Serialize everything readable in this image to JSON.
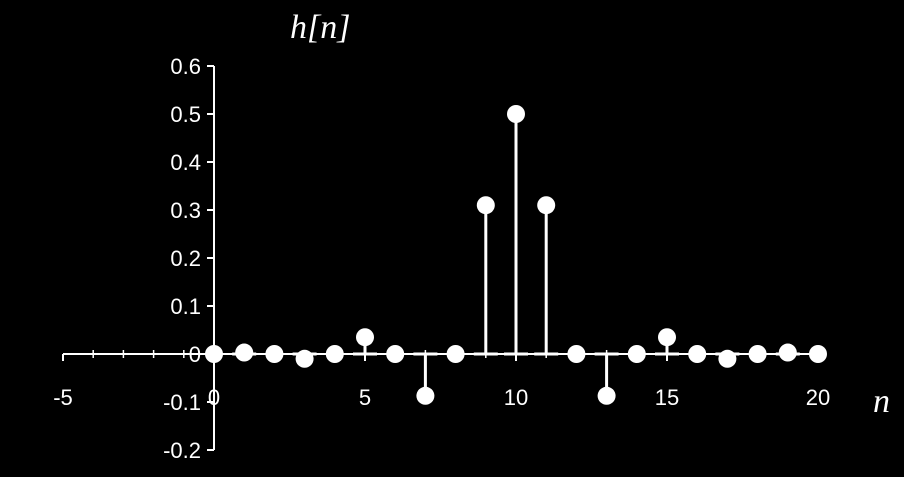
{
  "chart_data": {
    "type": "scatter",
    "style": "stem",
    "title": "",
    "ylabel": "h[n]",
    "xlabel": "n",
    "xlim": [
      -5,
      20
    ],
    "ylim": [
      -0.2,
      0.6
    ],
    "x_ticks": [
      -5,
      0,
      5,
      10,
      15,
      20
    ],
    "x_tick_labels": [
      "-5",
      "0",
      "5",
      "10",
      "15",
      "20"
    ],
    "y_ticks": [
      0.6,
      0.5,
      0.4,
      0.3,
      0.2,
      0.1,
      0,
      -0.1,
      -0.2
    ],
    "y_tick_labels": [
      "0.6",
      "0.5",
      "0.4",
      "0.3",
      "0.2",
      "0.1",
      "0",
      "-0.1",
      "-0.2"
    ],
    "grid": false,
    "series": [
      {
        "x": [
          0,
          1,
          2,
          3,
          4,
          5,
          6,
          7,
          8,
          9,
          10,
          11,
          12,
          13,
          14,
          15,
          16,
          17,
          18,
          19,
          20
        ],
        "values": [
          0,
          0.003,
          0,
          -0.01,
          0,
          0.035,
          0,
          -0.087,
          0,
          0.31,
          0.5,
          0.31,
          0,
          -0.087,
          0,
          0.035,
          0,
          -0.01,
          0,
          0.003,
          0
        ]
      }
    ],
    "colors": {
      "background": "#000000",
      "foreground": "#ffffff"
    }
  }
}
